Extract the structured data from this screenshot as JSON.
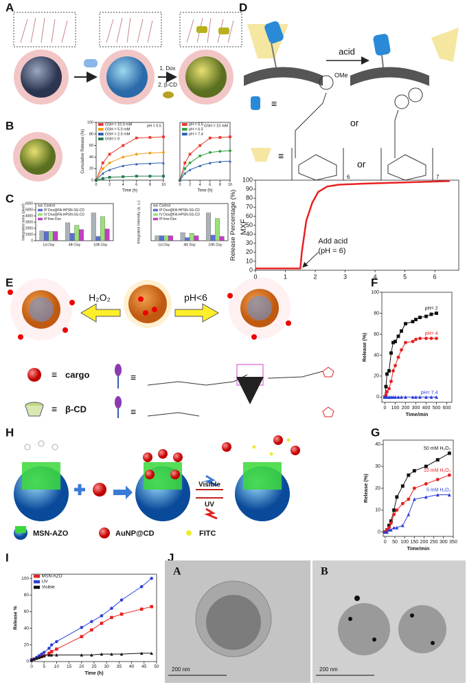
{
  "panels": {
    "labels": [
      "A",
      "B",
      "C",
      "D",
      "E",
      "F",
      "G",
      "H",
      "I",
      "J"
    ]
  },
  "scheme_a": {
    "step1": "1. Dox",
    "step2": "2. β-CD"
  },
  "scheme_d": {
    "arrow": "acid",
    "ome": "OMe",
    "equiv1": "≡",
    "or1": "or",
    "equiv2": "≡",
    "or2": "or",
    "n1": "6",
    "n2": "7",
    "drug": "MXF"
  },
  "scheme_e": {
    "left": "H₂O₂",
    "right": "pH<6",
    "cargo": "cargo",
    "cd": "β-CD",
    "eq": [
      "≡",
      "≡",
      "≡",
      "≡"
    ]
  },
  "scheme_h": {
    "msn": "MSN-AZO",
    "aunp": "AuNP@CD",
    "fitc": "FITC",
    "visible": "Visible",
    "uv": "UV"
  },
  "tem": {
    "a": "A",
    "b": "B",
    "scale_a": "200 nm",
    "scale_b": "200 nm"
  },
  "chart_data": [
    {
      "type": "line",
      "xlabel": "Time (h)",
      "ylabel": "Cumulative Release (%)",
      "annotation": "pH = 5.5",
      "x": [
        0,
        1,
        2,
        4,
        6,
        8,
        10
      ],
      "xlim": [
        0,
        10
      ],
      "xticks": [
        0,
        2,
        4,
        6,
        8,
        10
      ],
      "ylim": [
        0,
        100
      ],
      "yticks": [
        0,
        20,
        40,
        60,
        80,
        100
      ],
      "series": [
        {
          "name": "GSH = 10.0 mM",
          "color": "#e8392b",
          "values": [
            0,
            30,
            45,
            60,
            73,
            74,
            75
          ]
        },
        {
          "name": "GSH = 5.0 mM",
          "color": "#f39c12",
          "values": [
            0,
            20,
            30,
            40,
            45,
            47,
            48
          ]
        },
        {
          "name": "GSH = 2.5 mM",
          "color": "#2a5db0",
          "values": [
            0,
            12,
            18,
            25,
            28,
            29,
            30
          ]
        },
        {
          "name": "GSH = 0",
          "color": "#1e7a4a",
          "values": [
            0,
            3,
            5,
            6,
            7,
            7,
            7
          ]
        }
      ]
    },
    {
      "type": "line",
      "xlabel": "Time (h)",
      "annotation": "GSH = 10 mM",
      "x": [
        0,
        1,
        2,
        4,
        6,
        8,
        10
      ],
      "xlim": [
        0,
        10
      ],
      "xticks": [
        0,
        2,
        4,
        6,
        8,
        10
      ],
      "ylim": [
        0,
        100
      ],
      "series": [
        {
          "name": "pH = 5.5",
          "color": "#e8392b",
          "values": [
            0,
            30,
            45,
            60,
            73,
            74,
            75
          ]
        },
        {
          "name": "pH = 6.5",
          "color": "#2e9e3e",
          "values": [
            0,
            20,
            30,
            42,
            48,
            50,
            51
          ]
        },
        {
          "name": "pH = 7.4",
          "color": "#2a5db0",
          "values": [
            0,
            12,
            18,
            25,
            30,
            32,
            33
          ]
        }
      ]
    },
    {
      "type": "bar",
      "ylabel": "Integrated area (pixel)",
      "categories": [
        "1st Day",
        "4th Day",
        "10th Day"
      ],
      "ylim": [
        0,
        6000
      ],
      "yticks": [
        0,
        1000,
        2000,
        3000,
        4000,
        5000,
        6000
      ],
      "series": [
        {
          "name": "Control",
          "color": "#a9b3b8",
          "values": [
            1600,
            2900,
            4500
          ]
        },
        {
          "name": "IP Dox@FA-HPSN-SS-CD",
          "color": "#5b6fd6",
          "values": [
            1500,
            1200,
            700
          ]
        },
        {
          "name": "IV Dox@FA-HPSN-SS-CD",
          "color": "#9be07a",
          "values": [
            1500,
            2500,
            3900
          ]
        },
        {
          "name": "IP free Dox",
          "color": "#c33fc3",
          "values": [
            1500,
            1800,
            1900
          ]
        }
      ]
    },
    {
      "type": "bar",
      "ylabel": "Integrated Intensity (a. u.)",
      "categories": [
        "1st Day",
        "4th Day",
        "10th Day"
      ],
      "ylim": [
        0,
        6
      ],
      "series": [
        {
          "name": "Control",
          "color": "#a9b3b8",
          "values": [
            0.8,
            1.3,
            4.5
          ]
        },
        {
          "name": "IP Dox@FA-HPSN-SS-CD",
          "color": "#5b6fd6",
          "values": [
            0.8,
            0.5,
            0.9
          ]
        },
        {
          "name": "IV Dox@FA-HPSN-SS-CD",
          "color": "#9be07a",
          "values": [
            0.8,
            1.2,
            3.6
          ]
        },
        {
          "name": "IP free Dox",
          "color": "#c33fc3",
          "values": [
            0.8,
            0.8,
            0.7
          ]
        }
      ]
    },
    {
      "type": "line",
      "ylabel": "Release Percentage (%)",
      "annotation_lines": [
        "Add acid",
        "(pH = 6)"
      ],
      "x": [
        0,
        1.5,
        1.55,
        1.7,
        1.9,
        2.1,
        2.4,
        2.8,
        3.5,
        4.5,
        5.5,
        6.5
      ],
      "xlim": [
        0,
        6.8
      ],
      "xticks": [
        0,
        1,
        2,
        3,
        4,
        5,
        6
      ],
      "ylim": [
        0,
        100
      ],
      "yticks": [
        0,
        10,
        20,
        30,
        40,
        50,
        60,
        70,
        80,
        90,
        100
      ],
      "series": [
        {
          "color": "#e82020",
          "values": [
            2,
            2,
            20,
            55,
            75,
            87,
            93,
            95,
            96,
            97,
            98,
            99
          ]
        }
      ]
    },
    {
      "type": "line",
      "xlabel": "Time/min",
      "ylabel": "Release (%)",
      "x": [
        0,
        10,
        20,
        40,
        60,
        80,
        100,
        130,
        160,
        200,
        270,
        300,
        340,
        400,
        450,
        500
      ],
      "xlim": [
        -30,
        650
      ],
      "xticks": [
        0,
        100,
        200,
        300,
        400,
        500,
        600
      ],
      "ylim": [
        -5,
        100
      ],
      "yticks": [
        0,
        20,
        40,
        60,
        80,
        100
      ],
      "series": [
        {
          "name": "pH= 2",
          "color": "#111111",
          "values": [
            0,
            10,
            22,
            25,
            42,
            52,
            53,
            58,
            63,
            70,
            72,
            74,
            76,
            77,
            79,
            80
          ]
        },
        {
          "name": "pH= 4",
          "color": "#e82020",
          "values": [
            0,
            2,
            5,
            8,
            15,
            25,
            30,
            38,
            45,
            52,
            53,
            55,
            56,
            56,
            56,
            56
          ]
        },
        {
          "name": "pH= 7.4",
          "color": "#2a3fd6",
          "values": [
            0,
            0,
            0,
            0,
            0,
            0,
            0,
            0,
            0,
            0,
            0,
            0,
            0,
            0,
            0,
            0
          ]
        }
      ]
    },
    {
      "type": "line",
      "xlabel": "Time/min",
      "ylabel": "Release (%)",
      "x": [
        0,
        10,
        20,
        30,
        45,
        60,
        90,
        120,
        150,
        210,
        270,
        330
      ],
      "xlim": [
        -10,
        350
      ],
      "xticks": [
        0,
        50,
        100,
        150,
        200,
        250,
        300,
        350
      ],
      "ylim": [
        -2,
        42
      ],
      "yticks": [
        0,
        10,
        20,
        30,
        40
      ],
      "series": [
        {
          "name": "50 mM H₂O₂",
          "color": "#111111",
          "values": [
            0,
            1,
            3,
            5,
            10,
            16,
            21,
            26,
            28,
            30,
            33,
            36
          ]
        },
        {
          "name": "10 mM H₂O₂",
          "color": "#e82020",
          "values": [
            0,
            1,
            2,
            4,
            8,
            10,
            13,
            15,
            20,
            22,
            24,
            26
          ]
        },
        {
          "name": "5 mM H₂O₂",
          "color": "#2a3fd6",
          "values": [
            0,
            0,
            1,
            1,
            2,
            2,
            3,
            8,
            15,
            16,
            17,
            17
          ]
        }
      ]
    },
    {
      "type": "line",
      "xlabel": "Time (h)",
      "ylabel": "Release %",
      "x": [
        0,
        1,
        2,
        3,
        4,
        5,
        7,
        8,
        10,
        20,
        24,
        28,
        32,
        36,
        44,
        48
      ],
      "xlim": [
        0,
        50
      ],
      "xticks": [
        0,
        5,
        10,
        15,
        20,
        25,
        30,
        35,
        40,
        45,
        50
      ],
      "ylim": [
        0,
        105
      ],
      "yticks": [
        0,
        20,
        40,
        60,
        80,
        100
      ],
      "series": [
        {
          "name": "MSN-AZO",
          "color": "#e82020",
          "values": [
            2,
            3,
            4,
            5,
            6,
            7,
            10,
            12,
            15,
            30,
            38,
            46,
            53,
            57,
            63,
            66
          ]
        },
        {
          "name": "UV",
          "color": "#2a3fd6",
          "values": [
            2,
            3,
            5,
            7,
            9,
            11,
            16,
            20,
            24,
            41,
            48,
            55,
            64,
            74,
            90,
            100
          ]
        },
        {
          "name": "Visible",
          "color": "#111111",
          "values": [
            2,
            3,
            4,
            5,
            6,
            7,
            8,
            8,
            8,
            8,
            8,
            9,
            9,
            9,
            10,
            10
          ]
        }
      ]
    }
  ]
}
